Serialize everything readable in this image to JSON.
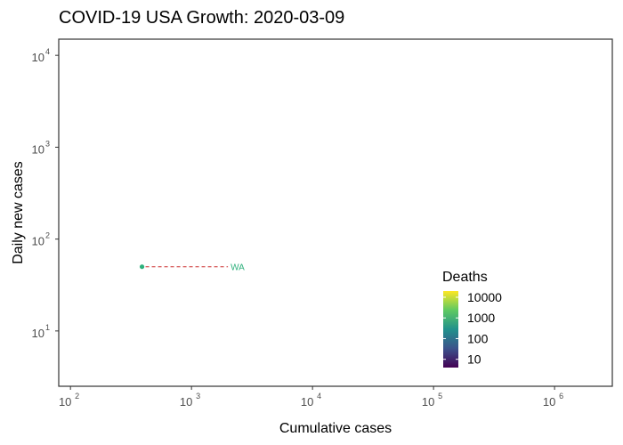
{
  "chart_data": {
    "type": "scatter",
    "title": "COVID-19 USA Growth: 2020-03-09",
    "xlabel": "Cumulative cases",
    "ylabel": "Daily new cases",
    "x_scale": "log10",
    "y_scale": "log10",
    "xlim": [
      80,
      3000000
    ],
    "ylim": [
      2.5,
      15000
    ],
    "x_ticks": [
      {
        "base": "10",
        "exp": "2",
        "value": 100
      },
      {
        "base": "10",
        "exp": "3",
        "value": 1000
      },
      {
        "base": "10",
        "exp": "4",
        "value": 10000
      },
      {
        "base": "10",
        "exp": "5",
        "value": 100000
      },
      {
        "base": "10",
        "exp": "6",
        "value": 1000000
      }
    ],
    "y_ticks": [
      {
        "base": "10",
        "exp": "1",
        "value": 10
      },
      {
        "base": "10",
        "exp": "2",
        "value": 100
      },
      {
        "base": "10",
        "exp": "3",
        "value": 1000
      },
      {
        "base": "10",
        "exp": "4",
        "value": 10000
      }
    ],
    "points": [
      {
        "label": "WA",
        "x": 390,
        "y": 50,
        "deaths": 300,
        "color": "#2eb07c"
      }
    ],
    "label_line_end_x": 2000,
    "label_line_color": "#cc2b2b",
    "grid": false,
    "legend": {
      "title": "Deaths",
      "position": "bottom-right",
      "scale": "log10",
      "labels": [
        "10000",
        "1000",
        "100",
        "10"
      ],
      "colorscale": [
        "#fde725",
        "#5ec962",
        "#21918c",
        "#3b528b",
        "#440154"
      ]
    }
  }
}
